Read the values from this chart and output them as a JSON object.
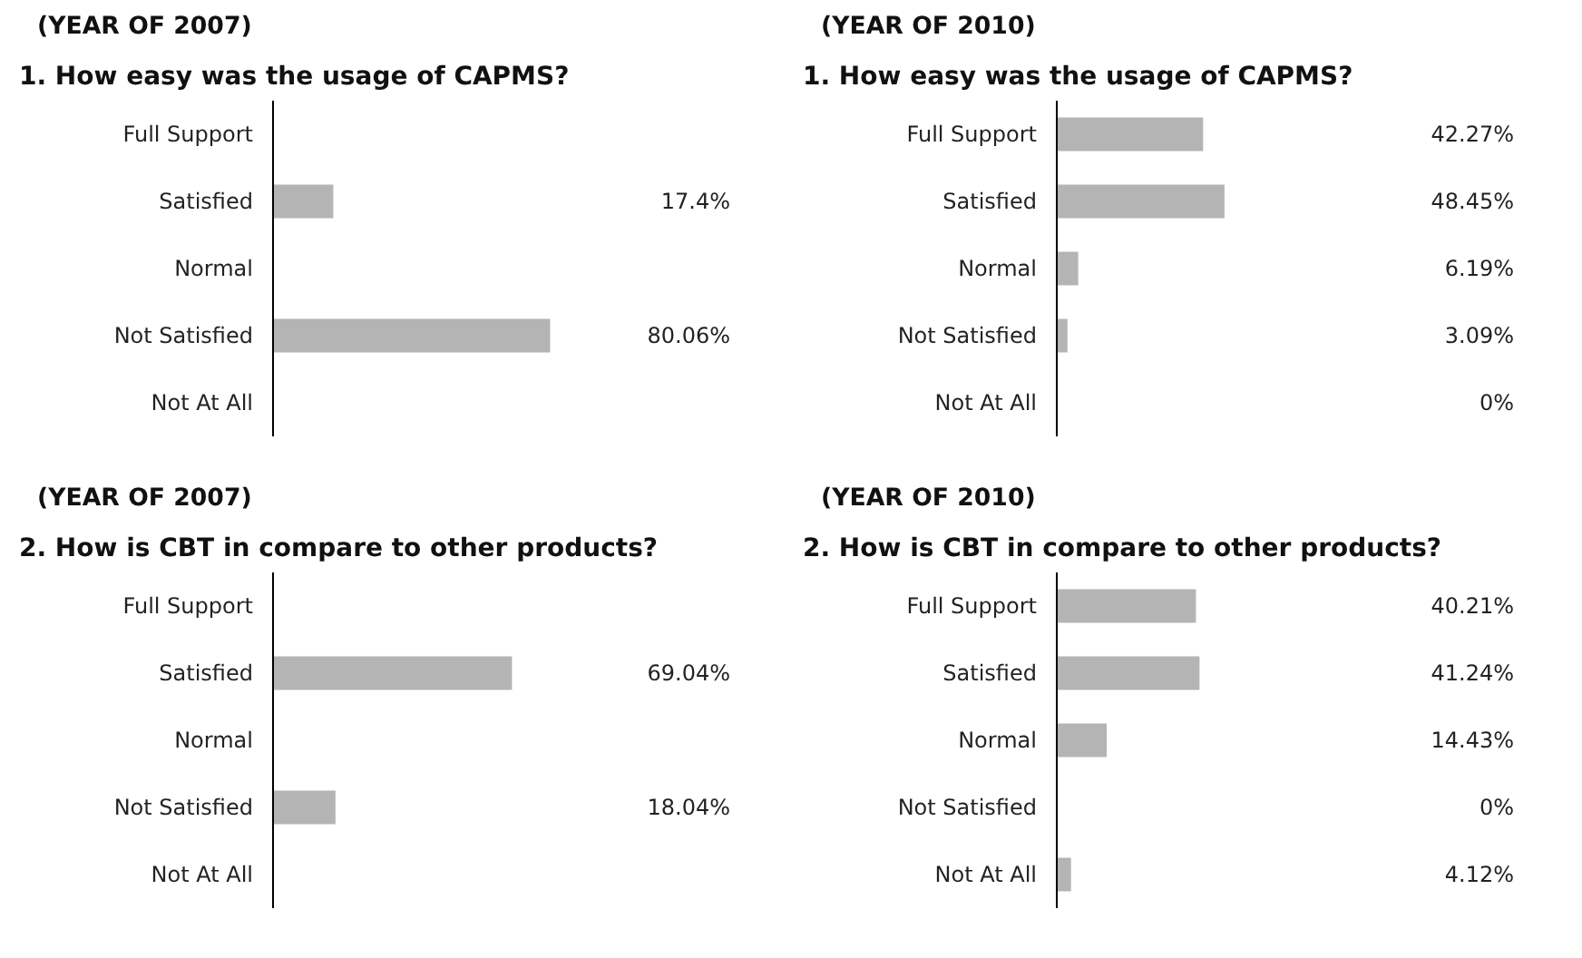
{
  "chart_data": [
    {
      "type": "bar",
      "orientation": "horizontal",
      "title": "(YEAR OF 2007)",
      "subtitle": "1. How easy was the usage of CAPMS?",
      "categories": [
        "Full Support",
        "Satisfied",
        "Normal",
        "Not Satisfied",
        "Not At All"
      ],
      "values": [
        null,
        17.4,
        null,
        80.06,
        null
      ],
      "value_labels": [
        null,
        "17.4%",
        null,
        "80.06%",
        null
      ],
      "color": "#b4b4b4",
      "tick_labels": "y"
    },
    {
      "type": "bar",
      "orientation": "horizontal",
      "title": "(YEAR OF 2010)",
      "subtitle": "1. How easy was the usage of CAPMS?",
      "categories": [
        "Full Support",
        "Satisfied",
        "Normal",
        "Not Satisfied",
        "Not At All"
      ],
      "values": [
        42.27,
        48.45,
        6.19,
        3.09,
        0
      ],
      "value_labels": [
        "42.27%",
        "48.45%",
        "6.19%",
        "3.09%",
        "0%"
      ],
      "color": "#b4b4b4",
      "tick_labels": "y"
    },
    {
      "type": "bar",
      "orientation": "horizontal",
      "title": "(YEAR OF 2007)",
      "subtitle": "2. How is CBT in compare to other products?",
      "categories": [
        "Full Support",
        "Satisfied",
        "Normal",
        "Not Satisfied",
        "Not At All"
      ],
      "values": [
        null,
        69.04,
        null,
        18.04,
        null
      ],
      "value_labels": [
        null,
        "69.04%",
        null,
        "18.04%",
        null
      ],
      "color": "#b4b4b4",
      "tick_labels": "y"
    },
    {
      "type": "bar",
      "orientation": "horizontal",
      "title": "(YEAR OF 2010)",
      "subtitle": "2. How is CBT in compare to other products?",
      "categories": [
        "Full Support",
        "Satisfied",
        "Normal",
        "Not Satisfied",
        "Not At All"
      ],
      "values": [
        40.21,
        41.24,
        14.43,
        0,
        4.12
      ],
      "value_labels": [
        "40.21%",
        "41.24%",
        "14.43%",
        "0%",
        "4.12%"
      ],
      "color": "#b4b4b4",
      "tick_labels": "y"
    }
  ]
}
